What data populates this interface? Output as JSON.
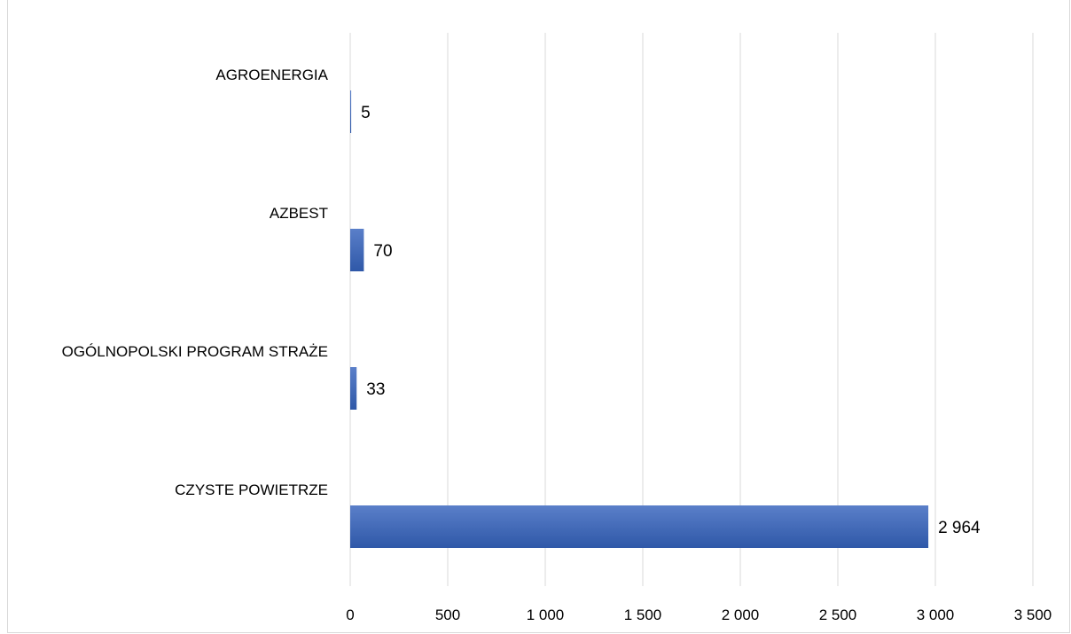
{
  "chart_data": {
    "type": "bar",
    "orientation": "horizontal",
    "title": "",
    "categories": [
      "AGROENERGIA",
      "AZBEST",
      "OGÓLNOPOLSKI PROGRAM STRAŻE",
      "CZYSTE POWIETRZE"
    ],
    "values": [
      5,
      70,
      33,
      2964
    ],
    "value_labels": [
      "5",
      "70",
      "33",
      "2 964"
    ],
    "ticks": [
      0,
      500,
      1000,
      1500,
      2000,
      2500,
      3000,
      3500
    ],
    "tick_labels": [
      "0",
      "500",
      "1 000",
      "1 500",
      "2 000",
      "2 500",
      "3 000",
      "3 500"
    ],
    "xlim": [
      0,
      3500
    ],
    "xlabel": "",
    "ylabel": "",
    "grid": "vertical",
    "legend": "none",
    "colors": {
      "bar_top": "#5a7fc9",
      "bar_bottom": "#2f58a8",
      "grid": "#d9d9d9"
    }
  }
}
